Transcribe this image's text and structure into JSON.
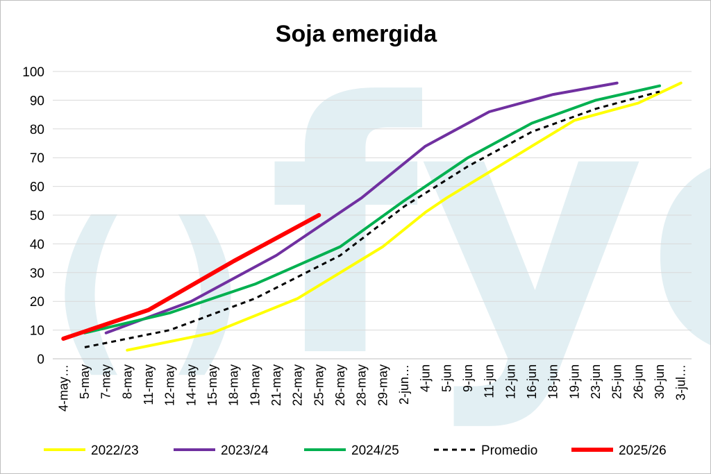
{
  "chart_data": {
    "type": "line",
    "title": "Soja emergida",
    "xlabel": "",
    "ylabel": "",
    "ylim": [
      0,
      100
    ],
    "yticks": [
      0,
      10,
      20,
      30,
      40,
      50,
      60,
      70,
      80,
      90,
      100
    ],
    "grid": true,
    "legend_position": "bottom",
    "watermark": "fyo",
    "categories": [
      "4-may…",
      "5-may",
      "7-may",
      "8-may",
      "11-may",
      "12-may",
      "14-may",
      "15-may",
      "18-may",
      "19-may",
      "21-may",
      "22-may",
      "25-may",
      "26-may",
      "28-may",
      "29-may",
      "2-jun…",
      "4-jun",
      "5-jun",
      "9-jun",
      "11-jun",
      "12-jun",
      "16-jun",
      "18-jun",
      "19-jun",
      "23-jun",
      "25-jun",
      "26-jun",
      "30-jun",
      "3-jul…"
    ],
    "series": [
      {
        "name": "2022/23",
        "color": "#ffff00",
        "dash": false,
        "width": 4,
        "points": [
          [
            "8-may",
            3
          ],
          [
            "15-may",
            9
          ],
          [
            "22-may",
            21
          ],
          [
            "26-may",
            30
          ],
          [
            "29-may",
            39
          ],
          [
            "4-jun",
            51
          ],
          [
            "5-jun",
            56
          ],
          [
            "11-jun",
            65
          ],
          [
            "16-jun",
            74
          ],
          [
            "19-jun",
            83
          ],
          [
            "26-jun",
            89
          ],
          [
            "3-jul…",
            96
          ]
        ]
      },
      {
        "name": "2023/24",
        "color": "#7030a0",
        "dash": false,
        "width": 4,
        "points": [
          [
            "7-may",
            9
          ],
          [
            "14-may",
            20
          ],
          [
            "21-may",
            36
          ],
          [
            "28-may",
            56
          ],
          [
            "4-jun",
            74
          ],
          [
            "11-jun",
            86
          ],
          [
            "18-jun",
            92
          ],
          [
            "25-jun",
            96
          ]
        ]
      },
      {
        "name": "2024/25",
        "color": "#00b050",
        "dash": false,
        "width": 4,
        "points": [
          [
            "5-may",
            9
          ],
          [
            "12-may",
            16
          ],
          [
            "19-may",
            26
          ],
          [
            "26-may",
            39
          ],
          [
            "2-jun…",
            55
          ],
          [
            "9-jun",
            70
          ],
          [
            "16-jun",
            82
          ],
          [
            "23-jun",
            90
          ],
          [
            "30-jun",
            95
          ]
        ]
      },
      {
        "name": "Promedio",
        "color": "#000000",
        "dash": true,
        "width": 3,
        "points": [
          [
            "5-may",
            4
          ],
          [
            "12-may",
            10
          ],
          [
            "19-may",
            21
          ],
          [
            "26-may",
            36
          ],
          [
            "2-jun…",
            53
          ],
          [
            "9-jun",
            67
          ],
          [
            "16-jun",
            79
          ],
          [
            "23-jun",
            87
          ],
          [
            "30-jun",
            93
          ]
        ]
      },
      {
        "name": "2025/26",
        "color": "#ff0000",
        "dash": false,
        "width": 6,
        "points": [
          [
            "4-may…",
            7
          ],
          [
            "11-may",
            17
          ],
          [
            "18-may",
            34
          ],
          [
            "25-may",
            50
          ]
        ]
      }
    ]
  }
}
